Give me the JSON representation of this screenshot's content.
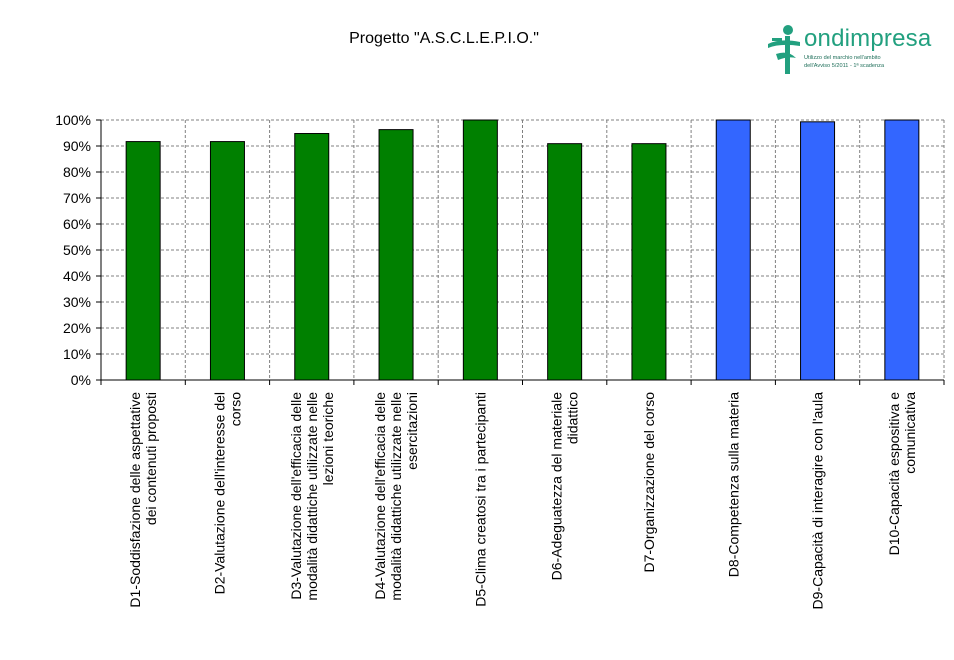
{
  "header": {
    "title": "Progetto \"A.S.C.L.E.P.I.O.\""
  },
  "logo": {
    "brand": "ondimpresa",
    "note_line1": "Utilizzo del marchio nell'ambito",
    "note_line2": "dell'Avviso 5/2011 - 1ª scadenza",
    "color": "#22a07f"
  },
  "chart_data": {
    "type": "bar",
    "title": "Progetto \"A.S.C.L.E.P.I.O.\"",
    "xlabel": "",
    "ylabel": "",
    "ylim": [
      0,
      100
    ],
    "yticks": [
      "0%",
      "10%",
      "20%",
      "30%",
      "40%",
      "50%",
      "60%",
      "70%",
      "80%",
      "90%",
      "100%"
    ],
    "grid": true,
    "categories": [
      [
        "D1-Soddisfazione delle aspettative",
        "dei contenuti proposti"
      ],
      [
        "D2-Valutazione  dell'interesse del",
        "corso"
      ],
      [
        "D3-Valutazione dell'efficacia delle",
        "modalità didattiche utilizzate nelle",
        "lezioni teoriche"
      ],
      [
        "D4-Valutazione dell'efficacia delle",
        "modalità didattiche utilizzate nelle",
        "esercitazioni"
      ],
      [
        "D5-Clima creatosi tra i partecipanti"
      ],
      [
        "D6-Adeguatezza del materiale",
        "didattico"
      ],
      [
        "D7-Organizzazione del corso"
      ],
      [
        "D8-Competenza sulla materia"
      ],
      [
        "D9-Capacità di interagire con l'aula"
      ],
      [
        "D10-Capacità espositiva e",
        "comunicativa"
      ]
    ],
    "values": [
      91.7,
      91.7,
      94.8,
      96.3,
      100,
      90.9,
      90.9,
      100,
      99.3,
      100
    ],
    "bar_colors": [
      "#008000",
      "#008000",
      "#008000",
      "#008000",
      "#008000",
      "#008000",
      "#008000",
      "#3366ff",
      "#3366ff",
      "#3366ff"
    ],
    "plot_background": "#ffffff",
    "grid_color": "#808080"
  }
}
